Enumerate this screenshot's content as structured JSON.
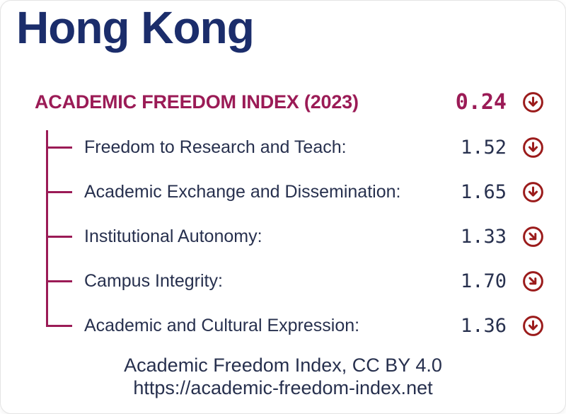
{
  "title": "Hong Kong",
  "index": {
    "label": "ACADEMIC FREEDOM INDEX (2023)",
    "value": "0.24",
    "trend": "down"
  },
  "indicators": [
    {
      "label": "Freedom to Research and Teach:",
      "value": "1.52",
      "trend": "down"
    },
    {
      "label": "Academic Exchange and Dissemination:",
      "value": "1.65",
      "trend": "down"
    },
    {
      "label": "Institutional Autonomy:",
      "value": "1.33",
      "trend": "down-right"
    },
    {
      "label": "Campus Integrity:",
      "value": "1.70",
      "trend": "down-right"
    },
    {
      "label": "Academic and Cultural Expression:",
      "value": "1.36",
      "trend": "down"
    }
  ],
  "footer": {
    "line1": "Academic Freedom Index, CC BY 4.0",
    "line2": "https://academic-freedom-index.net"
  },
  "colors": {
    "title": "#1b2d6b",
    "text": "#27304e",
    "accent": "#9b1b56",
    "arrow_red": "#9b1b1b",
    "card_border": "#e4e4e4"
  }
}
